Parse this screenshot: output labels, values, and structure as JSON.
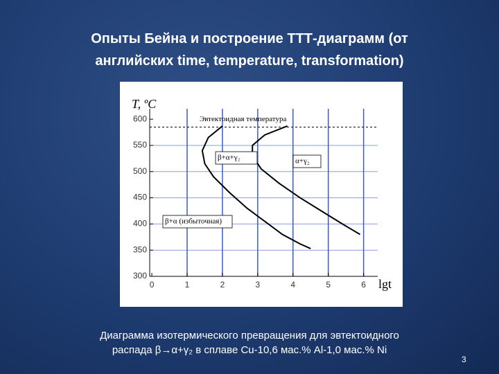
{
  "slide": {
    "title_lines": [
      "Опыты Бейна и построение ТТТ-диаграмм (от",
      "английских time, temperature, transformation)"
    ],
    "caption_lines": [
      "Диаграмма изотермического превращения для эвтектоидного",
      "распада β→α+γ₂ в сплаве Cu-10,6 мас.% Al-1,0 мас.% Ni"
    ],
    "page_number": "3"
  },
  "chart_data": {
    "type": "line",
    "y_label": "T, ºC",
    "x_label": "lgt",
    "xlim": [
      -0.06,
      6.4
    ],
    "xticks": [
      0,
      1,
      2,
      3,
      4,
      5,
      6
    ],
    "ylim": [
      300,
      620
    ],
    "yticks": [
      300,
      350,
      400,
      450,
      500,
      550,
      600
    ],
    "grid": true,
    "grid_color": "#3a5bd0",
    "series": [
      {
        "color": "#000000",
        "x": [
          2.0,
          1.6,
          1.43,
          1.5,
          1.75,
          2.2,
          2.7,
          3.2,
          3.7,
          4.2,
          4.5
        ],
        "values": [
          587,
          565,
          540,
          515,
          490,
          460,
          430,
          405,
          380,
          362,
          353
        ]
      },
      {
        "color": "#000000",
        "x": [
          3.84,
          3.2,
          2.85,
          2.85,
          3.1,
          3.6,
          4.2,
          4.8,
          5.4,
          5.9
        ],
        "values": [
          587,
          570,
          550,
          530,
          505,
          478,
          450,
          425,
          400,
          380
        ]
      }
    ],
    "reference_lines": [
      {
        "y": 585,
        "label": "Эвтектоидная температура"
      }
    ],
    "annotations": [
      "β+α+γ₂",
      "α+γ₂",
      "β+α (избыточная)"
    ]
  }
}
